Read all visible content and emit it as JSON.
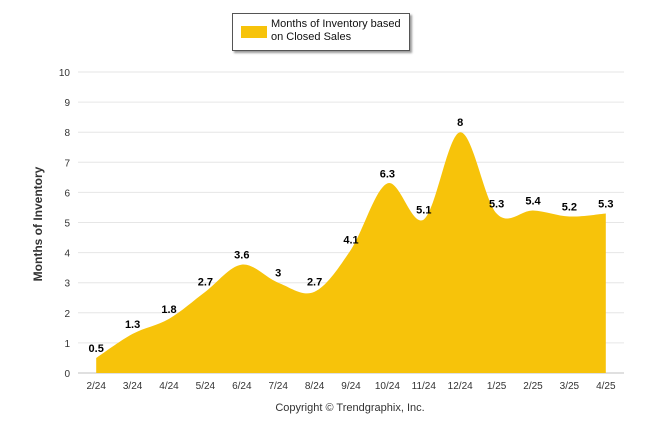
{
  "chart_data": {
    "type": "area",
    "categories": [
      "2/24",
      "3/24",
      "4/24",
      "5/24",
      "6/24",
      "7/24",
      "8/24",
      "9/24",
      "10/24",
      "11/24",
      "12/24",
      "1/25",
      "2/25",
      "3/25",
      "4/25"
    ],
    "series": [
      {
        "name": "Months of Inventory based on Closed Sales",
        "values": [
          0.5,
          1.3,
          1.8,
          2.7,
          3.6,
          3,
          2.7,
          4.1,
          6.3,
          5.1,
          8,
          5.3,
          5.4,
          5.2,
          5.3
        ]
      }
    ],
    "data_labels": [
      "0.5",
      "1.3",
      "1.8",
      "2.7",
      "3.6",
      "3",
      "2.7",
      "4.1",
      "6.3",
      "5.1",
      "8",
      "5.3",
      "5.4",
      "5.2",
      "5.3"
    ],
    "ylabel": "Months of Inventory",
    "xlabel": "",
    "ylim": [
      0,
      10
    ],
    "yticks": [
      0,
      1,
      2,
      3,
      4,
      5,
      6,
      7,
      8,
      9,
      10
    ],
    "grid": true,
    "legend_position": "top-center",
    "color": "#F7C30A",
    "copyright": "Copyright © Trendgraphix, Inc."
  }
}
